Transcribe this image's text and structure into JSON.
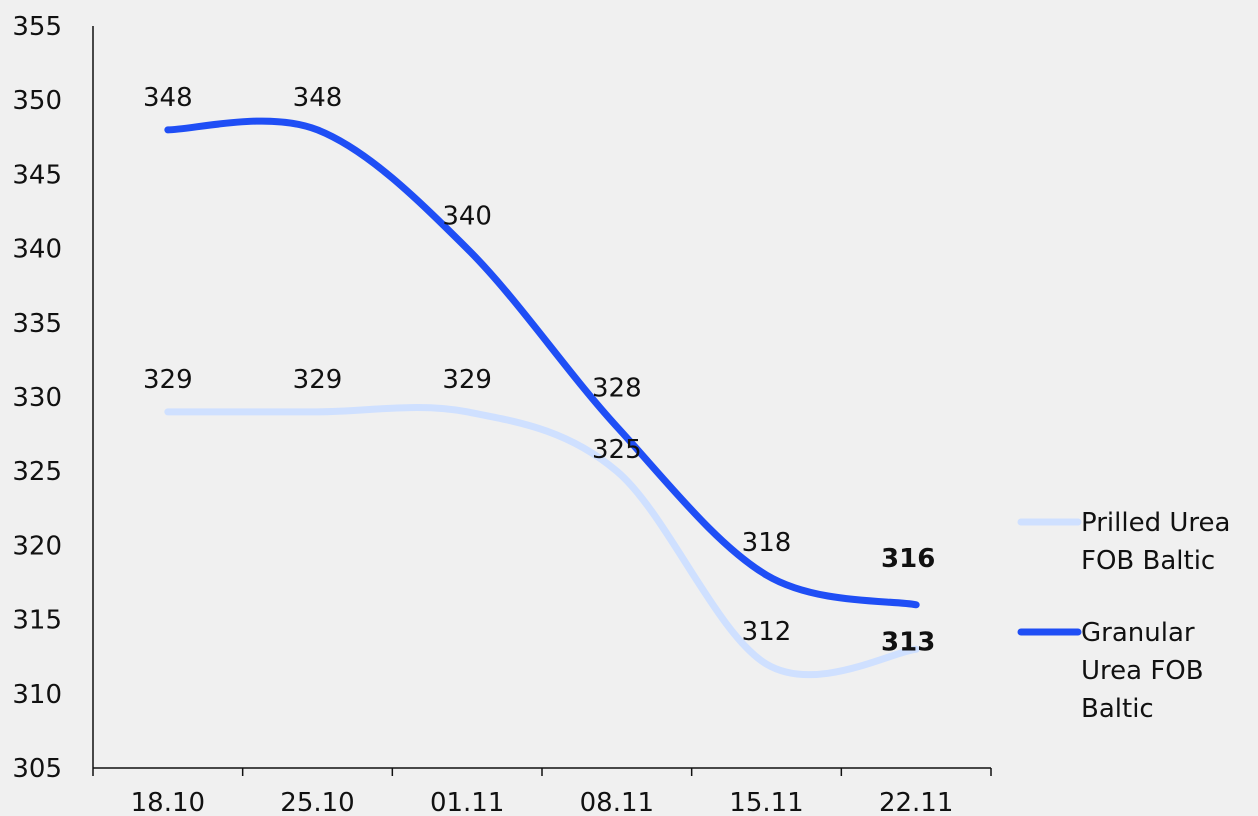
{
  "chart_data": {
    "type": "line",
    "categories": [
      "18.10",
      "25.10",
      "01.11",
      "08.11",
      "15.11",
      "22.11"
    ],
    "ylim": [
      305,
      355
    ],
    "yticks": [
      305,
      310,
      315,
      320,
      325,
      330,
      335,
      340,
      345,
      350,
      355
    ],
    "smooth": true,
    "legend_position": "right",
    "series": [
      {
        "name": "Prilled Urea FOB Baltic",
        "legend_lines": [
          "Prilled Urea",
          "FOB Baltic"
        ],
        "values": [
          329,
          329,
          329,
          325,
          312,
          313
        ],
        "color": "#cfe0ff",
        "last_label_bold": true
      },
      {
        "name": "Granular Urea FOB Baltic",
        "legend_lines": [
          "Granular",
          "Urea FOB",
          "Baltic"
        ],
        "values": [
          348,
          348,
          340,
          328,
          318,
          316
        ],
        "color": "#1f4ef5",
        "last_label_bold": true
      }
    ]
  }
}
